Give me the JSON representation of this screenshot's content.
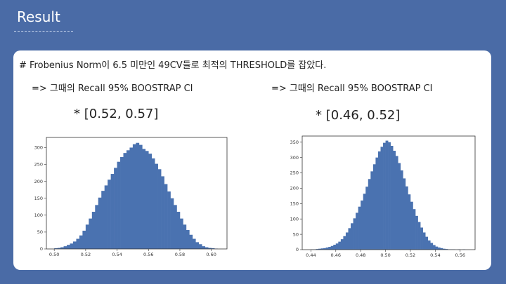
{
  "slide": {
    "title": "Result",
    "description": "# Frobenius Norm이 6.5 미만인 49CV들로 최적의 THRESHOLD를 잡았다."
  },
  "left": {
    "ci_label": "=> 그때의 Recall 95% BOOSTRAP CI",
    "ci_value": "* [0.52,   0.57]"
  },
  "right": {
    "ci_label": "=> 그때의 Recall 95% BOOSTRAP CI",
    "ci_value": "* [0.46,   0.52]"
  },
  "chart_data": [
    {
      "type": "bar",
      "title": "",
      "xlabel": "",
      "ylabel": "",
      "color": "#4a72b0",
      "xlim": [
        0.495,
        0.61
      ],
      "ylim": [
        0,
        330
      ],
      "x_ticks": [
        0.5,
        0.52,
        0.54,
        0.56,
        0.58,
        0.6
      ],
      "x_tick_labels": [
        "0.50",
        "0.52",
        "0.54",
        "0.56",
        "0.58",
        "0.60"
      ],
      "y_ticks": [
        0,
        50,
        100,
        150,
        200,
        250,
        300
      ],
      "y_tick_labels": [
        "0",
        "50",
        "100",
        "150",
        "200",
        "250",
        "300"
      ],
      "bins": [
        0.5,
        0.502,
        0.504,
        0.506,
        0.508,
        0.51,
        0.512,
        0.514,
        0.516,
        0.518,
        0.52,
        0.522,
        0.524,
        0.526,
        0.528,
        0.53,
        0.532,
        0.534,
        0.536,
        0.538,
        0.54,
        0.542,
        0.544,
        0.546,
        0.548,
        0.55,
        0.552,
        0.554,
        0.556,
        0.558,
        0.56,
        0.562,
        0.564,
        0.566,
        0.568,
        0.57,
        0.572,
        0.574,
        0.576,
        0.578,
        0.58,
        0.582,
        0.584,
        0.586,
        0.588,
        0.59,
        0.592,
        0.594,
        0.596,
        0.598,
        0.6,
        0.602
      ],
      "counts": [
        2,
        3,
        5,
        8,
        12,
        16,
        22,
        30,
        40,
        54,
        72,
        90,
        110,
        130,
        152,
        172,
        188,
        205,
        222,
        240,
        258,
        272,
        284,
        292,
        300,
        310,
        314,
        308,
        296,
        290,
        282,
        268,
        252,
        236,
        215,
        192,
        170,
        150,
        130,
        110,
        90,
        72,
        56,
        42,
        30,
        20,
        14,
        8,
        5,
        3,
        2,
        1
      ]
    },
    {
      "type": "bar",
      "title": "",
      "xlabel": "",
      "ylabel": "",
      "color": "#4a72b0",
      "xlim": [
        0.433,
        0.572
      ],
      "ylim": [
        0,
        370
      ],
      "x_ticks": [
        0.44,
        0.46,
        0.48,
        0.5,
        0.52,
        0.54,
        0.56
      ],
      "x_tick_labels": [
        "0.44",
        "0.46",
        "0.48",
        "0.50",
        "0.52",
        "0.54",
        "0.56"
      ],
      "y_ticks": [
        0,
        50,
        100,
        150,
        200,
        250,
        300,
        350
      ],
      "y_tick_labels": [
        "0",
        "50",
        "100",
        "150",
        "200",
        "250",
        "300",
        "350"
      ],
      "bins": [
        0.44,
        0.442,
        0.444,
        0.446,
        0.448,
        0.45,
        0.452,
        0.454,
        0.456,
        0.458,
        0.46,
        0.462,
        0.464,
        0.466,
        0.468,
        0.47,
        0.472,
        0.474,
        0.476,
        0.478,
        0.48,
        0.482,
        0.484,
        0.486,
        0.488,
        0.49,
        0.492,
        0.494,
        0.496,
        0.498,
        0.5,
        0.502,
        0.504,
        0.506,
        0.508,
        0.51,
        0.512,
        0.514,
        0.516,
        0.518,
        0.52,
        0.522,
        0.524,
        0.526,
        0.528,
        0.53,
        0.532,
        0.534,
        0.536,
        0.538,
        0.54,
        0.542,
        0.544,
        0.546,
        0.548,
        0.55,
        0.552,
        0.554,
        0.556,
        0.558,
        0.56,
        0.562
      ],
      "counts": [
        1,
        1,
        2,
        3,
        4,
        5,
        7,
        9,
        12,
        16,
        20,
        26,
        34,
        44,
        56,
        70,
        86,
        102,
        120,
        140,
        160,
        182,
        205,
        230,
        255,
        278,
        300,
        320,
        335,
        348,
        355,
        350,
        338,
        322,
        305,
        282,
        258,
        232,
        206,
        180,
        156,
        132,
        110,
        90,
        72,
        56,
        42,
        30,
        22,
        15,
        10,
        7,
        5,
        3,
        2,
        1,
        1,
        1,
        0,
        1,
        0,
        1
      ]
    }
  ]
}
